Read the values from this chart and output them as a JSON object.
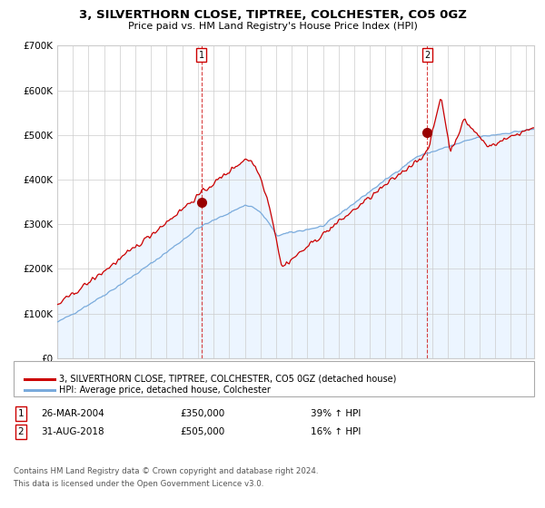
{
  "title": "3, SILVERTHORN CLOSE, TIPTREE, COLCHESTER, CO5 0GZ",
  "subtitle": "Price paid vs. HM Land Registry's House Price Index (HPI)",
  "legend_line1": "3, SILVERTHORN CLOSE, TIPTREE, COLCHESTER, CO5 0GZ (detached house)",
  "legend_line2": "HPI: Average price, detached house, Colchester",
  "footnote1": "Contains HM Land Registry data © Crown copyright and database right 2024.",
  "footnote2": "This data is licensed under the Open Government Licence v3.0.",
  "annotation1_label": "1",
  "annotation1_date": "26-MAR-2004",
  "annotation1_price": "£350,000",
  "annotation1_hpi": "39% ↑ HPI",
  "annotation2_label": "2",
  "annotation2_date": "31-AUG-2018",
  "annotation2_price": "£505,000",
  "annotation2_hpi": "16% ↑ HPI",
  "line_red_color": "#cc0000",
  "line_blue_color": "#7aabdc",
  "fill_color": "#ddeeff",
  "grid_color": "#cccccc",
  "background_color": "#ffffff",
  "annotation_box_color": "#cc0000",
  "dashed_line_color": "#cc0000",
  "ylim": [
    0,
    700000
  ],
  "yticks": [
    0,
    100000,
    200000,
    300000,
    400000,
    500000,
    600000,
    700000
  ],
  "ytick_labels": [
    "£0",
    "£100K",
    "£200K",
    "£300K",
    "£400K",
    "£500K",
    "£600K",
    "£700K"
  ],
  "sale1_x": 2004.23,
  "sale1_y": 350000,
  "sale2_x": 2018.66,
  "sale2_y": 505000,
  "xlim_start": 1995.0,
  "xlim_end": 2025.5
}
